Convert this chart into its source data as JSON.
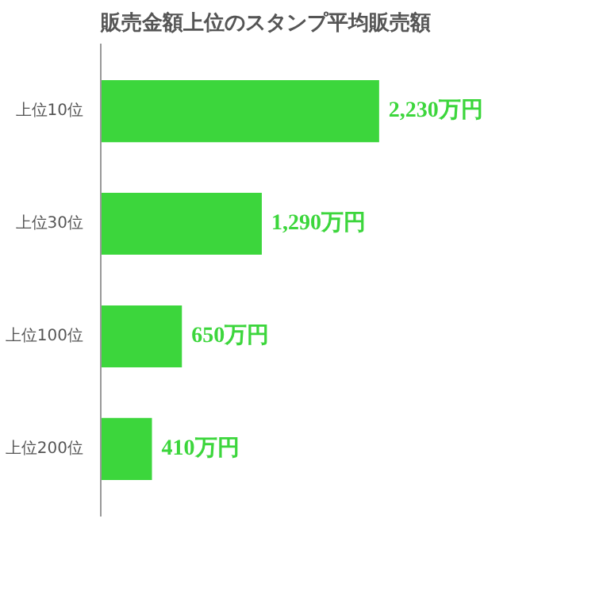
{
  "chart_data": {
    "type": "bar",
    "orientation": "horizontal",
    "title": "販売金額上位のスタンプ平均販売額",
    "categories": [
      "上位10位",
      "上位30位",
      "上位100位",
      "上位200位"
    ],
    "values": [
      2230,
      1290,
      650,
      410
    ],
    "value_labels": [
      "2,230万円",
      "1,290万円",
      "650万円",
      "410万円"
    ],
    "color": "#3cd63c"
  }
}
